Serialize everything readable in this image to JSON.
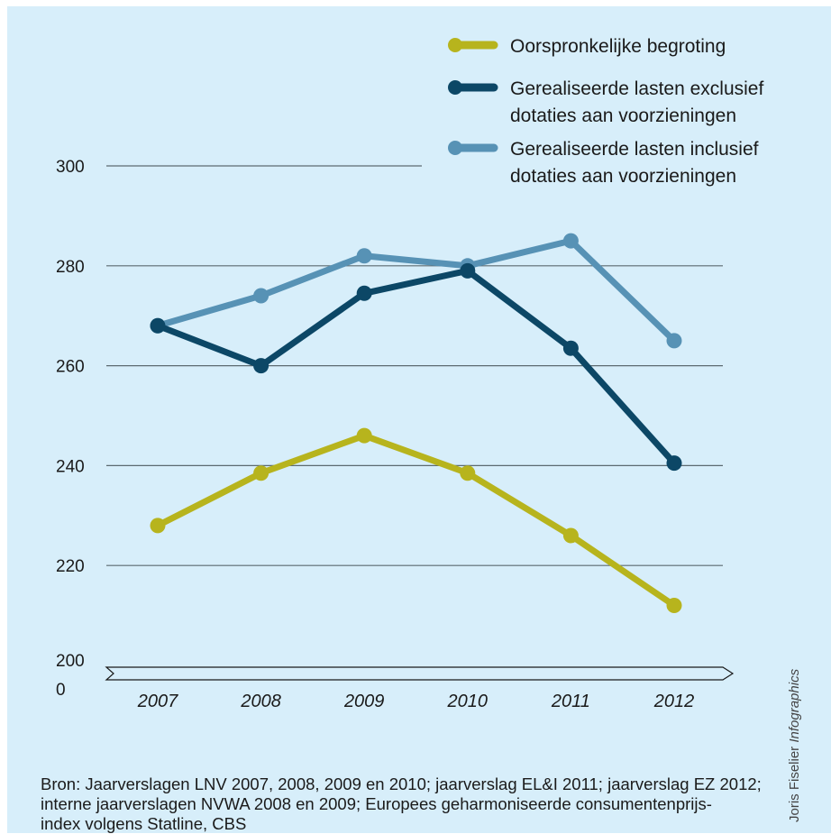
{
  "chart_data": {
    "type": "line",
    "title": "",
    "xlabel": "",
    "ylabel": "",
    "x": [
      "2007",
      "2008",
      "2009",
      "2010",
      "2011",
      "2012"
    ],
    "y_ticks": [
      "300",
      "280",
      "260",
      "240",
      "220",
      "200",
      "0"
    ],
    "ylim": [
      200,
      300
    ],
    "axis_break": true,
    "grid": true,
    "legend_position": "top-right",
    "series": [
      {
        "name": "Oorspronkelijke begroting",
        "label_lines": [
          "Oorspronkelijke begroting"
        ],
        "color": "#b7b41d",
        "values": [
          228,
          238.5,
          246,
          238.5,
          226,
          212
        ]
      },
      {
        "name": "Gerealiseerde lasten exclusief dotaties aan voorzieningen",
        "label_lines": [
          "Gerealiseerde lasten exclusief",
          "dotaties aan voorzieningen"
        ],
        "color": "#0c4766",
        "values": [
          268,
          260,
          274.5,
          279,
          263.5,
          240.5
        ]
      },
      {
        "name": "Gerealiseerde lasten inclusief dotaties aan voorzieningen",
        "label_lines": [
          "Gerealiseerde lasten inclusief",
          "dotaties aan voorzieningen"
        ],
        "color": "#5792b5",
        "values": [
          268,
          274,
          282,
          280,
          285,
          265
        ]
      }
    ]
  },
  "source": {
    "lines": [
      "Bron: Jaarverslagen LNV 2007, 2008, 2009 en 2010; jaarverslag EL&I 2011; jaarverslag EZ 2012;",
      "interne jaarverslagen NVWA 2008 en 2009; Europees geharmoniseerde consumentenprijs-",
      "index volgens Statline, CBS"
    ]
  },
  "credit": {
    "name": "Joris Fiselier",
    "suffix": "Infographics"
  }
}
